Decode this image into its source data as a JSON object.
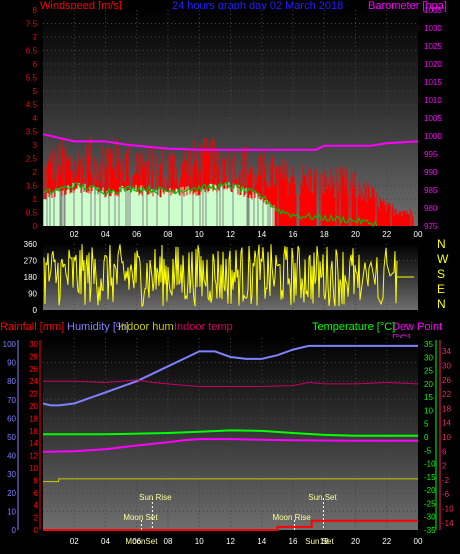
{
  "colors": {
    "wind_label": "#ff0000",
    "title": "#0000ff",
    "barometer": "#ff00ff",
    "gust": "#ff0000",
    "avg_wind": "#00c000",
    "calm": "#ccffcc",
    "direction": "#ffff00",
    "compass": "#ffff00",
    "rain": "#ff0000",
    "humidity": "#8080ff",
    "indoor_hum": "#cccc00",
    "indoor_temp": "#cc0066",
    "temperature": "#00ff00",
    "dew_point": "#ff00ff",
    "events": "#ffff99",
    "axis_text": "#ffffff"
  },
  "top": {
    "title": "24 hours graph day  02 March 2018",
    "left_label": "Windspeed [m/s]",
    "right_label": "Barometer [hpa]"
  },
  "wind_dir": {
    "compass": [
      "N",
      "W",
      "S",
      "E",
      "N"
    ]
  },
  "bottom": {
    "rain_label": "Rainfall [mm]",
    "humidity_label": "Humidity [%]",
    "indoor_hum_label": "Indoor hum",
    "indoor_temp_label": "Indoor temp",
    "temp_label": "Temperature [°C]",
    "dew_label": "Dew Point [°C]",
    "sun_rise": "Sun Rise",
    "sun_set": "Sun Set",
    "moon_set": "Moon Set",
    "moon_rise": "Moon Rise",
    "moon_set_short": "MoonSet",
    "sun_set_short": "Sun Set"
  },
  "chart_data": [
    {
      "type": "bar",
      "name": "wind_barometer",
      "x_ticks": [
        "02",
        "04",
        "06",
        "08",
        "10",
        "12",
        "14",
        "16",
        "18",
        "20",
        "22",
        "00"
      ],
      "ylim_left": [
        0,
        8
      ],
      "y_ticks_left": [
        "0",
        "0.5",
        "1",
        "1.5",
        "2",
        "2.5",
        "3",
        "3.5",
        "4",
        "4.5",
        "5",
        "5.5",
        "6",
        "6.5",
        "7",
        "7.5",
        "8"
      ],
      "ylim_right": [
        975,
        1035
      ],
      "y_ticks_right": [
        "975",
        "980",
        "985",
        "990",
        "995",
        "1000",
        "1005",
        "1010",
        "1015",
        "1020",
        "1025",
        "1030",
        "1035"
      ],
      "barometer_hpa": [
        [
          0,
          1000.5
        ],
        [
          1,
          999.5
        ],
        [
          2,
          998.5
        ],
        [
          4,
          998.5
        ],
        [
          5.5,
          997.5
        ],
        [
          8,
          996.5
        ],
        [
          10,
          996.2
        ],
        [
          14,
          996.2
        ],
        [
          17.5,
          996.2
        ],
        [
          18,
          997.3
        ],
        [
          21,
          997.3
        ],
        [
          22,
          998
        ],
        [
          24,
          998.5
        ]
      ],
      "gust_envelope": [
        [
          0,
          2.6
        ],
        [
          1,
          3.4
        ],
        [
          2,
          3.0
        ],
        [
          3,
          3.3
        ],
        [
          4,
          3.6
        ],
        [
          5,
          3.2
        ],
        [
          6,
          3.2
        ],
        [
          7,
          3.0
        ],
        [
          8,
          3.0
        ],
        [
          9,
          3.1
        ],
        [
          10,
          3.3
        ],
        [
          11,
          3.3
        ],
        [
          12,
          3.0
        ],
        [
          13,
          3.1
        ],
        [
          14,
          2.8
        ],
        [
          15,
          2.6
        ],
        [
          16,
          2.4
        ],
        [
          17,
          2.4
        ],
        [
          18,
          2.2
        ],
        [
          19,
          2.3
        ],
        [
          20,
          2.0
        ],
        [
          21,
          1.6
        ],
        [
          22,
          0.9
        ],
        [
          23,
          0.8
        ],
        [
          24,
          0.6
        ]
      ],
      "avg_wind": [
        [
          0,
          1.2
        ],
        [
          2,
          1.5
        ],
        [
          4,
          1.3
        ],
        [
          6,
          1.4
        ],
        [
          8,
          1.3
        ],
        [
          10,
          1.4
        ],
        [
          12,
          1.5
        ],
        [
          14,
          1.1
        ],
        [
          15,
          0.6
        ],
        [
          16,
          0.4
        ],
        [
          18,
          0.3
        ],
        [
          20,
          0.2
        ],
        [
          21,
          0.1
        ],
        [
          24,
          0
        ]
      ]
    },
    {
      "type": "bar",
      "name": "wind_direction",
      "ylim": [
        0,
        360
      ],
      "y_ticks": [
        "0",
        "90",
        "180",
        "270",
        "360"
      ],
      "x_ticks": [
        "02",
        "04",
        "06",
        "08",
        "10",
        "12",
        "14",
        "16",
        "18",
        "20",
        "22",
        "00"
      ],
      "final_direction_deg": 180
    },
    {
      "type": "line",
      "name": "temperature_humidity",
      "x_ticks": [
        "02",
        "04",
        "06",
        "08",
        "10",
        "12",
        "14",
        "16",
        "18",
        "20",
        "22",
        "00"
      ],
      "humidity_axis": {
        "ylim": [
          0,
          100
        ],
        "ticks": [
          "0",
          "10",
          "20",
          "30",
          "40",
          "50",
          "60",
          "70",
          "80",
          "90",
          "100"
        ]
      },
      "rain_axis": {
        "ylim": [
          0,
          30
        ],
        "ticks": [
          "0",
          "2",
          "4",
          "6",
          "8",
          "10",
          "12",
          "14",
          "16",
          "18",
          "20",
          "22",
          "24",
          "26",
          "28",
          "30"
        ]
      },
      "temp_axis": {
        "ylim": [
          -35,
          35
        ],
        "ticks": [
          "-35",
          "-30",
          "-25",
          "-20",
          "-15",
          "-10",
          "-5",
          "0",
          "5",
          "10",
          "15",
          "20",
          "25",
          "30",
          "35"
        ]
      },
      "dew_axis": {
        "ylim": [
          -16,
          36
        ],
        "ticks": [
          "-16",
          "-14",
          "-12",
          "-10",
          "-8",
          "-6",
          "-4",
          "-2",
          "0",
          "2",
          "4",
          "6",
          "8",
          "10",
          "12",
          "14",
          "16",
          "18",
          "20",
          "22",
          "24",
          "26",
          "28",
          "30",
          "32",
          "34"
        ]
      },
      "series": [
        {
          "name": "Humidity",
          "values": [
            [
              0,
              68
            ],
            [
              0.5,
              67
            ],
            [
              1,
              67
            ],
            [
              2,
              68
            ],
            [
              3,
              71
            ],
            [
              4,
              74
            ],
            [
              5,
              77
            ],
            [
              6,
              80
            ],
            [
              7,
              84
            ],
            [
              8,
              88
            ],
            [
              9,
              92
            ],
            [
              10,
              96
            ],
            [
              11,
              96
            ],
            [
              12,
              93
            ],
            [
              13,
              92
            ],
            [
              14,
              92
            ],
            [
              15,
              94
            ],
            [
              16,
              97
            ],
            [
              17,
              99
            ],
            [
              18,
              99
            ],
            [
              20,
              99
            ],
            [
              24,
              99
            ]
          ]
        },
        {
          "name": "Temperature",
          "values": [
            [
              0,
              1
            ],
            [
              4,
              1
            ],
            [
              8,
              1.5
            ],
            [
              10,
              2
            ],
            [
              12,
              2.5
            ],
            [
              14,
              2.3
            ],
            [
              16,
              1.5
            ],
            [
              18,
              0.8
            ],
            [
              20,
              0.5
            ],
            [
              24,
              0.5
            ]
          ]
        },
        {
          "name": "Dew Point",
          "values": [
            [
              0,
              -5.6
            ],
            [
              2,
              -5.4
            ],
            [
              4,
              -4.6
            ],
            [
              6,
              -3.2
            ],
            [
              8,
              -2
            ],
            [
              9,
              -1.2
            ],
            [
              10,
              -0.8
            ],
            [
              12,
              -0.8
            ],
            [
              14,
              -1
            ],
            [
              16,
              -1.2
            ],
            [
              18,
              -1.3
            ],
            [
              20,
              -1.4
            ],
            [
              24,
              -1.4
            ]
          ]
        },
        {
          "name": "Indoor temp",
          "values": [
            [
              0,
              21
            ],
            [
              2,
              21
            ],
            [
              4,
              20.5
            ],
            [
              6,
              21.5
            ],
            [
              7,
              20.5
            ],
            [
              8,
              20
            ],
            [
              9,
              19.5
            ],
            [
              10,
              19
            ],
            [
              12,
              19
            ],
            [
              14,
              19
            ],
            [
              16,
              19.4
            ],
            [
              17,
              20.5
            ],
            [
              18,
              20
            ],
            [
              20,
              20
            ],
            [
              22,
              20.5
            ],
            [
              24,
              20
            ]
          ]
        },
        {
          "name": "Indoor hum",
          "values": [
            [
              0,
              26
            ],
            [
              1,
              26
            ],
            [
              1,
              27.5
            ],
            [
              23,
              27.5
            ],
            [
              24,
              27.5
            ]
          ]
        },
        {
          "name": "Rainfall",
          "values": [
            [
              0,
              0
            ],
            [
              15,
              0
            ],
            [
              15,
              0.5
            ],
            [
              17.2,
              0.5
            ],
            [
              17.2,
              1.5
            ],
            [
              24,
              1.5
            ]
          ]
        }
      ],
      "events": {
        "sun_rise_h": 7.0,
        "sun_set_h": 17.95,
        "moon_set_h": 6.3,
        "moon_rise_h": 16.1
      }
    }
  ]
}
